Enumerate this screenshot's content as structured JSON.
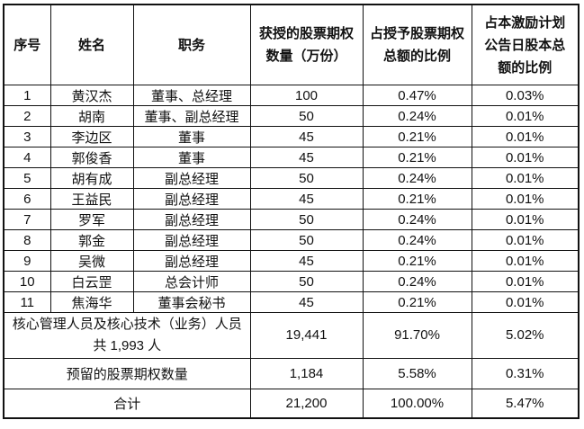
{
  "page": {
    "background_color": "#ffffff",
    "border_color": "#111111",
    "text_color": "#111111"
  },
  "table": {
    "columns": [
      {
        "key": "no",
        "label": "序号"
      },
      {
        "key": "name",
        "label": "姓名"
      },
      {
        "key": "title",
        "label": "职务"
      },
      {
        "key": "amount",
        "label": "获授的股票期权\n数量（万份）"
      },
      {
        "key": "pct_of_granted",
        "label": "占授予股票期权\n总额的比例"
      },
      {
        "key": "pct_of_capital",
        "label": "占本激励计划\n公告日股本总\n额的比例"
      }
    ],
    "rows": [
      {
        "no": "1",
        "name": "黄汉杰",
        "title": "董事、总经理",
        "amount": "100",
        "pct_of_granted": "0.47%",
        "pct_of_capital": "0.03%"
      },
      {
        "no": "2",
        "name": "胡南",
        "title": "董事、副总经理",
        "amount": "50",
        "pct_of_granted": "0.24%",
        "pct_of_capital": "0.01%"
      },
      {
        "no": "3",
        "name": "李边区",
        "title": "董事",
        "amount": "45",
        "pct_of_granted": "0.21%",
        "pct_of_capital": "0.01%"
      },
      {
        "no": "4",
        "name": "郭俊香",
        "title": "董事",
        "amount": "45",
        "pct_of_granted": "0.21%",
        "pct_of_capital": "0.01%"
      },
      {
        "no": "5",
        "name": "胡有成",
        "title": "副总经理",
        "amount": "50",
        "pct_of_granted": "0.24%",
        "pct_of_capital": "0.01%"
      },
      {
        "no": "6",
        "name": "王益民",
        "title": "副总经理",
        "amount": "45",
        "pct_of_granted": "0.21%",
        "pct_of_capital": "0.01%"
      },
      {
        "no": "7",
        "name": "罗军",
        "title": "副总经理",
        "amount": "50",
        "pct_of_granted": "0.24%",
        "pct_of_capital": "0.01%"
      },
      {
        "no": "8",
        "name": "郭金",
        "title": "副总经理",
        "amount": "50",
        "pct_of_granted": "0.24%",
        "pct_of_capital": "0.01%"
      },
      {
        "no": "9",
        "name": "吴微",
        "title": "副总经理",
        "amount": "45",
        "pct_of_granted": "0.21%",
        "pct_of_capital": "0.01%"
      },
      {
        "no": "10",
        "name": "白云罡",
        "title": "总会计师",
        "amount": "50",
        "pct_of_granted": "0.24%",
        "pct_of_capital": "0.01%"
      },
      {
        "no": "11",
        "name": "焦海华",
        "title": "董事会秘书",
        "amount": "45",
        "pct_of_granted": "0.21%",
        "pct_of_capital": "0.01%"
      }
    ],
    "summary_rows": [
      {
        "label": "核心管理人员及核心技术（业务）人员\n共 1,993 人",
        "amount": "19,441",
        "pct_of_granted": "91.70%",
        "pct_of_capital": "5.02%"
      },
      {
        "label": "预留的股票期权数量",
        "amount": "1,184",
        "pct_of_granted": "5.58%",
        "pct_of_capital": "0.31%"
      },
      {
        "label": "合计",
        "amount": "21,200",
        "pct_of_granted": "100.00%",
        "pct_of_capital": "5.47%"
      }
    ]
  }
}
